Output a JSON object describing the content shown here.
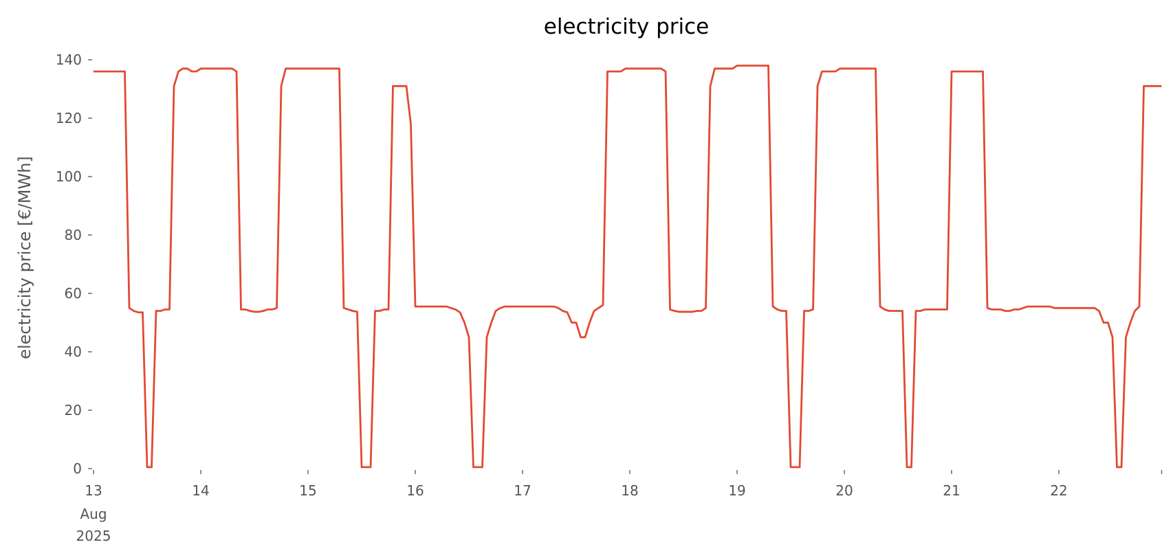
{
  "chart_data": {
    "type": "line",
    "title": "electricity price",
    "xlabel": "",
    "ylabel": "electricity price [€/MWh]",
    "ylim": [
      0,
      145
    ],
    "yticks": [
      "0",
      "20",
      "40",
      "60",
      "80",
      "100",
      "120",
      "140"
    ],
    "xlim": [
      "2025-08-13 00:00",
      "2025-08-22 23:00"
    ],
    "xticks": [
      {
        "label": "13",
        "sub1": "Aug",
        "sub2": "2025",
        "date": "2025-08-13"
      },
      {
        "label": "14",
        "date": "2025-08-14"
      },
      {
        "label": "15",
        "date": "2025-08-15"
      },
      {
        "label": "16",
        "date": "2025-08-16"
      },
      {
        "label": "17",
        "date": "2025-08-17"
      },
      {
        "label": "18",
        "date": "2025-08-18"
      },
      {
        "label": "19",
        "date": "2025-08-19"
      },
      {
        "label": "20",
        "date": "2025-08-20"
      },
      {
        "label": "21",
        "date": "2025-08-21"
      },
      {
        "label": "22",
        "date": "2025-08-22"
      }
    ],
    "grid": false,
    "legend": "none",
    "line_color": "#E24A33",
    "series": [
      {
        "resolution": "hourly",
        "days": [
          {
            "date": "2025-08-13",
            "values": [
              136,
              136,
              136,
              136,
              136,
              136,
              136,
              136,
              55,
              54,
              53.5,
              53.5,
              0.5,
              0.5,
              54,
              54,
              54.5,
              54.5,
              131,
              136,
              137,
              137,
              136,
              136
            ]
          },
          {
            "date": "2025-08-14",
            "values": [
              137,
              137,
              137,
              137,
              137,
              137,
              137,
              137,
              136,
              54.5,
              54.5,
              54,
              53.7,
              53.7,
              54,
              54.5,
              54.5,
              55,
              131,
              137,
              137,
              137,
              137,
              137
            ]
          },
          {
            "date": "2025-08-15",
            "values": [
              137,
              137,
              137,
              137,
              137,
              137,
              137,
              137,
              55,
              54.5,
              54,
              53.7,
              0.5,
              0.5,
              0.5,
              54,
              54,
              54.5,
              54.5,
              131,
              131,
              131,
              131,
              118
            ]
          },
          {
            "date": "2025-08-16",
            "values": [
              55.5,
              55.5,
              55.5,
              55.5,
              55.5,
              55.5,
              55.5,
              55.5,
              55,
              54.5,
              53.5,
              50,
              45,
              0.5,
              0.5,
              0.5,
              45,
              50,
              54,
              55,
              55.5,
              55.5,
              55.5,
              55.5
            ]
          },
          {
            "date": "2025-08-17",
            "values": [
              55.5,
              55.5,
              55.5,
              55.5,
              55.5,
              55.5,
              55.5,
              55.5,
              55,
              54,
              53.5,
              50,
              50,
              45,
              45,
              50,
              54,
              55,
              56,
              136,
              136,
              136,
              136,
              137
            ]
          },
          {
            "date": "2025-08-18",
            "values": [
              137,
              137,
              137,
              137,
              137,
              137,
              137,
              137,
              136,
              54.5,
              54,
              53.7,
              53.7,
              53.7,
              53.7,
              54,
              54,
              55,
              131,
              137,
              137,
              137,
              137,
              137
            ]
          },
          {
            "date": "2025-08-19",
            "values": [
              138,
              138,
              138,
              138,
              138,
              138,
              138,
              138,
              55.5,
              54.5,
              54,
              54,
              0.5,
              0.5,
              0.5,
              54,
              54,
              54.5,
              131,
              136,
              136,
              136,
              136,
              137
            ]
          },
          {
            "date": "2025-08-20",
            "values": [
              137,
              137,
              137,
              137,
              137,
              137,
              137,
              137,
              55.5,
              54.5,
              54,
              54,
              54,
              54,
              0.5,
              0.5,
              54,
              54,
              54.5,
              54.5,
              54.5,
              54.5,
              54.5,
              54.5
            ]
          },
          {
            "date": "2025-08-21",
            "values": [
              136,
              136,
              136,
              136,
              136,
              136,
              136,
              136,
              55,
              54.5,
              54.5,
              54.5,
              54,
              54,
              54.5,
              54.5,
              55,
              55.5,
              55.5,
              55.5,
              55.5,
              55.5,
              55.5,
              55
            ]
          },
          {
            "date": "2025-08-22",
            "values": [
              55,
              55,
              55,
              55,
              55,
              55,
              55,
              55,
              55,
              54,
              50,
              50,
              45,
              0.5,
              0.5,
              45,
              50,
              54,
              55.5,
              131,
              131,
              131,
              131,
              131
            ]
          }
        ]
      }
    ]
  }
}
